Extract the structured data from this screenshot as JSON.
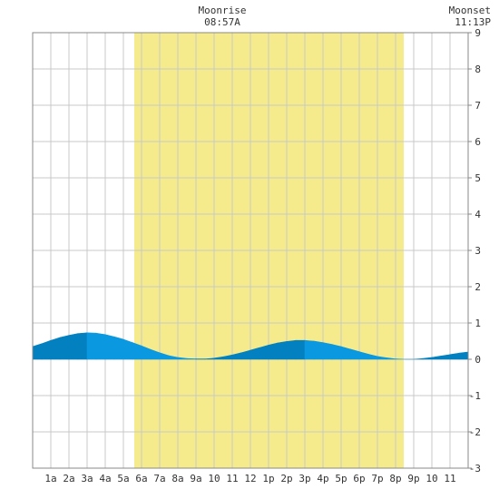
{
  "chart_data": {
    "type": "area",
    "y_ticks": [
      "-3",
      "-2",
      "-1",
      "0",
      "1",
      "2",
      "3",
      "4",
      "5",
      "6",
      "7",
      "8",
      "9"
    ],
    "ylim": [
      -3,
      9
    ],
    "x_range_hours": [
      0,
      24
    ],
    "x_tick_labels": [
      "1a",
      "2a",
      "3a",
      "4a",
      "5a",
      "6a",
      "7a",
      "8a",
      "9a",
      "10",
      "11",
      "12",
      "1p",
      "2p",
      "3p",
      "4p",
      "5p",
      "6p",
      "7p",
      "8p",
      "9p",
      "10",
      "11"
    ],
    "grid": true,
    "daylight": {
      "start_hour": 5.6,
      "end_hour": 20.45,
      "color": "#f5eb8c"
    },
    "annotations": [
      {
        "label": "Moonrise",
        "time": "08:57A",
        "hour": 10.45
      },
      {
        "label": "Moonset",
        "time": "11:13P",
        "hour": 24.0
      }
    ],
    "tide_series": {
      "times_hours": [
        0,
        0.5,
        1,
        1.5,
        2,
        2.5,
        3,
        3.5,
        4,
        4.5,
        5,
        5.5,
        6,
        6.5,
        7,
        7.5,
        8,
        8.5,
        9,
        9.5,
        10,
        10.5,
        11,
        11.5,
        12,
        12.5,
        13,
        13.5,
        14,
        14.5,
        15,
        15.5,
        16,
        16.5,
        17,
        17.5,
        18,
        18.5,
        19,
        19.5,
        20,
        20.5,
        21,
        21.5,
        22,
        22.5,
        23,
        23.5,
        24
      ],
      "heights": [
        0.35,
        0.43,
        0.52,
        0.6,
        0.66,
        0.71,
        0.73,
        0.72,
        0.68,
        0.62,
        0.55,
        0.46,
        0.37,
        0.27,
        0.18,
        0.1,
        0.05,
        0.02,
        0.01,
        0.01,
        0.03,
        0.07,
        0.12,
        0.18,
        0.25,
        0.32,
        0.39,
        0.45,
        0.49,
        0.52,
        0.52,
        0.5,
        0.46,
        0.41,
        0.35,
        0.28,
        0.21,
        0.14,
        0.08,
        0.04,
        0.01,
        0.0,
        0.0,
        0.02,
        0.05,
        0.09,
        0.13,
        0.17,
        0.2
      ]
    },
    "colors": {
      "rising": "#0280c0",
      "falling": "#0a98e0",
      "grid": "#c8c8c8"
    }
  }
}
